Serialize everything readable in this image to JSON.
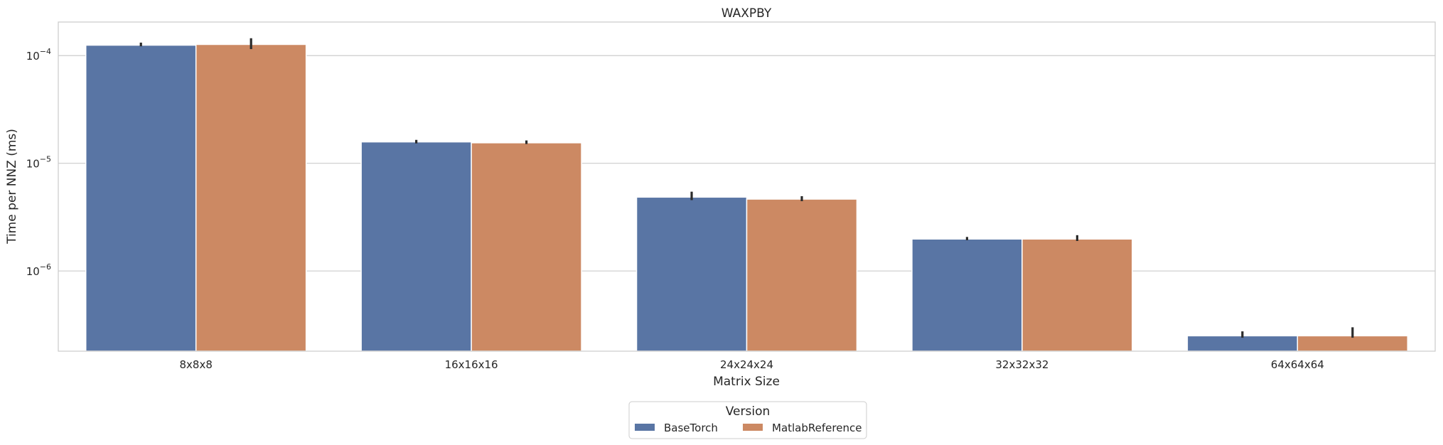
{
  "chart_data": {
    "type": "bar",
    "title": "WAXPBY",
    "xlabel": "Matrix Size",
    "ylabel": "Time per NNZ (ms)",
    "yscale": "log",
    "ylim": [
      1.8e-07,
      0.000205
    ],
    "yticks": [
      {
        "value": 0.0001,
        "base": "10",
        "exp": "−4"
      },
      {
        "value": 1e-05,
        "base": "10",
        "exp": "−5"
      },
      {
        "value": 1e-06,
        "base": "10",
        "exp": "−6"
      }
    ],
    "categories": [
      "8x8x8",
      "16x16x16",
      "24x24x24",
      "32x32x32",
      "64x64x64"
    ],
    "series": [
      {
        "name": "BaseTorch",
        "color": "#5975a4",
        "values": [
          0.000125,
          1.58e-05,
          4.85e-06,
          1.98e-06,
          2.5e-07
        ],
        "error_low": [
          0.000122,
          1.53e-05,
          4.55e-06,
          1.93e-06,
          2.4e-07
        ],
        "error_high": [
          0.000132,
          1.65e-05,
          5.45e-06,
          2.07e-06,
          2.75e-07
        ]
      },
      {
        "name": "MatlabReference",
        "color": "#cc8963",
        "values": [
          0.000127,
          1.55e-05,
          4.65e-06,
          1.98e-06,
          2.5e-07
        ],
        "error_low": [
          0.000115,
          1.51e-05,
          4.45e-06,
          1.9e-06,
          2.4e-07
        ],
        "error_high": [
          0.000145,
          1.63e-05,
          4.95e-06,
          2.15e-06,
          3e-07
        ]
      }
    ],
    "grid": "horizontal",
    "legend": {
      "title": "Version",
      "placement": "bottom-center"
    }
  }
}
